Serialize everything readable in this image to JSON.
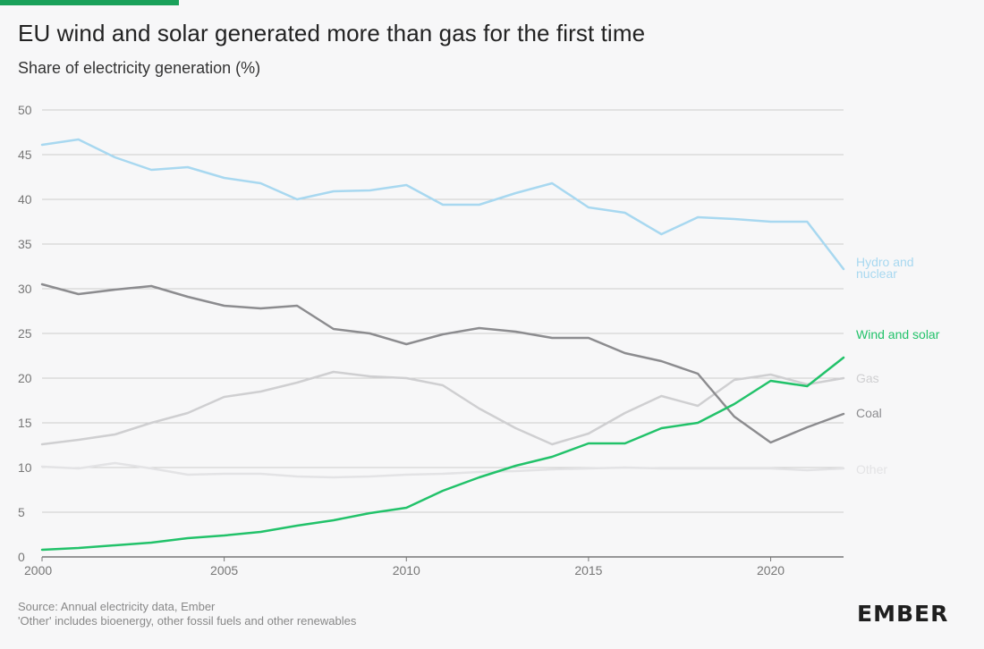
{
  "header": {
    "title": "EU wind and solar generated more than gas for the first time",
    "subtitle": "Share of electricity generation (%)"
  },
  "footer": {
    "source": "Source: Annual electricity data, Ember",
    "note": "'Other' includes bioenergy, other fossil fuels and other renewables"
  },
  "logo": {
    "text": "EMBER"
  },
  "colors": {
    "accent_bar": "#1aa15a",
    "grid": "#cccccc",
    "axis": "#777777"
  },
  "chart_data": {
    "type": "line",
    "title": "EU wind and solar generated more than gas for the first time",
    "ylabel": "Share of electricity generation (%)",
    "xlabel": "",
    "xlim": [
      2000,
      2022
    ],
    "ylim": [
      0,
      50
    ],
    "x_ticks": [
      2000,
      2005,
      2010,
      2015,
      2020
    ],
    "y_ticks": [
      0,
      5,
      10,
      15,
      20,
      25,
      30,
      35,
      40,
      45,
      50
    ],
    "grid": "horizontal",
    "x": [
      2000,
      2001,
      2002,
      2003,
      2004,
      2005,
      2006,
      2007,
      2008,
      2009,
      2010,
      2011,
      2012,
      2013,
      2014,
      2015,
      2016,
      2017,
      2018,
      2019,
      2020,
      2021,
      2022
    ],
    "series": [
      {
        "name": "Hydro and nuclear",
        "label_lines": [
          "Hydro and",
          "nuclear"
        ],
        "color": "#a8d8f0",
        "values": [
          46.1,
          46.7,
          44.7,
          43.3,
          43.6,
          42.4,
          41.8,
          40.0,
          40.9,
          41.0,
          41.6,
          39.4,
          39.4,
          40.7,
          41.8,
          39.1,
          38.5,
          36.1,
          38.0,
          37.8,
          37.5,
          37.5,
          32.2
        ]
      },
      {
        "name": "Wind and solar",
        "label_lines": [
          "Wind and solar"
        ],
        "color": "#22c26a",
        "values": [
          0.8,
          1.0,
          1.3,
          1.6,
          2.1,
          2.4,
          2.8,
          3.5,
          4.1,
          4.9,
          5.5,
          7.4,
          8.9,
          10.2,
          11.2,
          12.7,
          12.7,
          14.4,
          15.0,
          17.1,
          19.7,
          19.1,
          22.3
        ]
      },
      {
        "name": "Gas",
        "label_lines": [
          "Gas"
        ],
        "color": "#cfcfd1",
        "values": [
          12.6,
          13.1,
          13.7,
          15.0,
          16.1,
          17.9,
          18.5,
          19.5,
          20.7,
          20.2,
          20.0,
          19.2,
          16.6,
          14.4,
          12.6,
          13.8,
          16.1,
          18.0,
          16.9,
          19.8,
          20.4,
          19.3,
          20.0
        ]
      },
      {
        "name": "Coal",
        "label_lines": [
          "Coal"
        ],
        "color": "#8c8c8f",
        "values": [
          30.5,
          29.4,
          29.9,
          30.3,
          29.1,
          28.1,
          27.8,
          28.1,
          25.5,
          25.0,
          23.8,
          24.9,
          25.6,
          25.2,
          24.5,
          24.5,
          22.8,
          21.9,
          20.5,
          15.7,
          12.8,
          14.5,
          16.0
        ]
      },
      {
        "name": "Other",
        "label_lines": [
          "Other"
        ],
        "color": "#e3e3e5",
        "values": [
          10.1,
          9.9,
          10.5,
          9.9,
          9.2,
          9.3,
          9.3,
          9.0,
          8.9,
          9.0,
          9.2,
          9.3,
          9.5,
          9.6,
          9.8,
          9.9,
          10.0,
          9.9,
          9.9,
          9.9,
          9.9,
          9.7,
          9.9
        ]
      }
    ]
  }
}
